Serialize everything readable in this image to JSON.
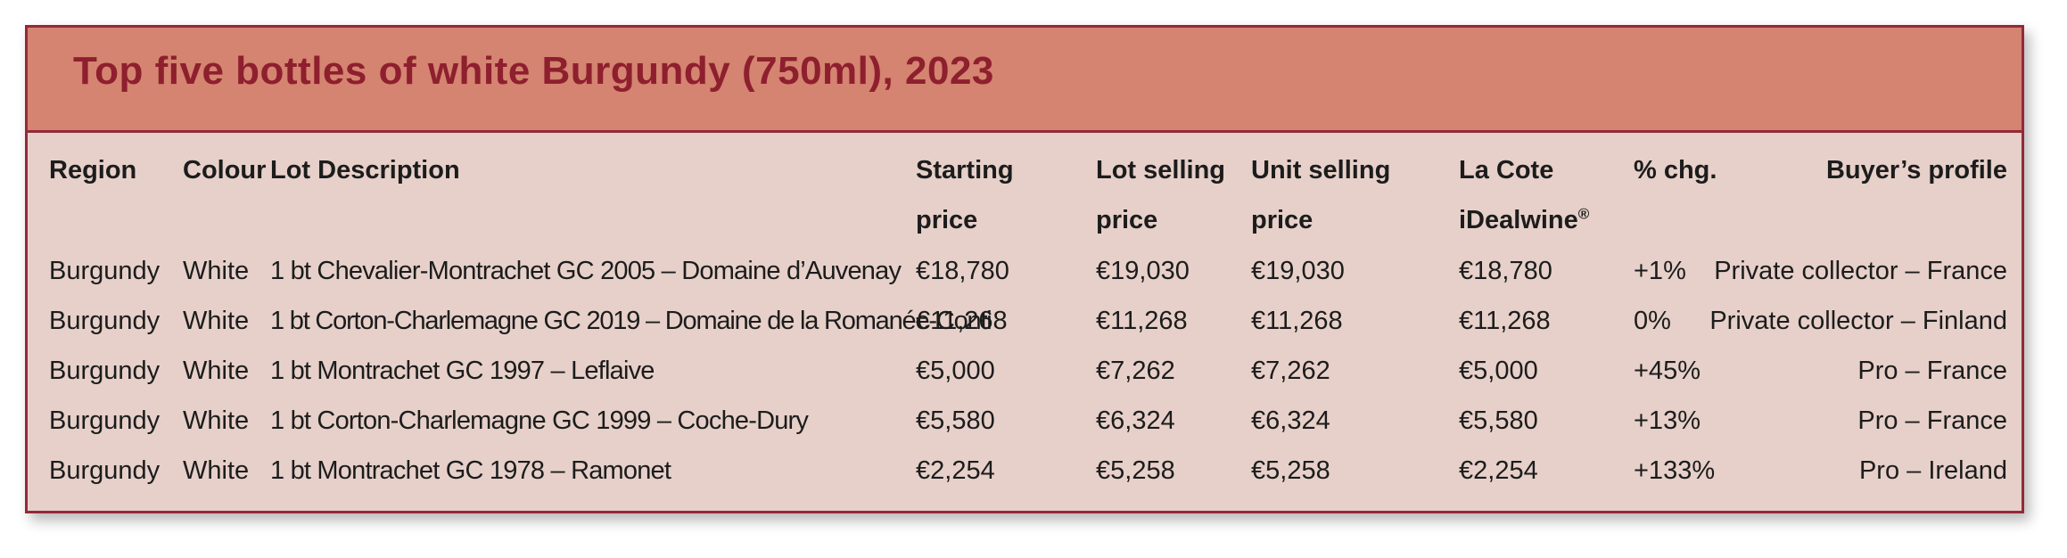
{
  "chart_data": {
    "type": "table",
    "title": "Top five bottles of white Burgundy (750ml), 2023",
    "columns": [
      "Region",
      "Colour",
      "Lot Description",
      "Starting price",
      "Lot selling price",
      "Unit selling price",
      "La Cote iDealwine®",
      "% chg.",
      "Buyer’s profile"
    ],
    "rows": [
      [
        "Burgundy",
        "White",
        "1 bt Chevalier-Montrachet GC 2005 – Domaine d’Auvenay",
        "€18,780",
        "€19,030",
        "€19,030",
        "€18,780",
        "+1%",
        "Private collector – France"
      ],
      [
        "Burgundy",
        "White",
        "1 bt Corton-Charlemagne GC 2019 – Domaine de la Romanée-Conti",
        "€11,268",
        "€11,268",
        "€11,268",
        "€11,268",
        "0%",
        "Private collector – Finland"
      ],
      [
        "Burgundy",
        "White",
        "1 bt Montrachet GC 1997 – Leflaive",
        "€5,000",
        "€7,262",
        "€7,262",
        "€5,000",
        "+45%",
        "Pro – France"
      ],
      [
        "Burgundy",
        "White",
        "1 bt Corton-Charlemagne GC 1999 – Coche-Dury",
        "€5,580",
        "€6,324",
        "€6,324",
        "€5,580",
        "+13%",
        "Pro – France"
      ],
      [
        "Burgundy",
        "White",
        "1 bt Montrachet GC 1978 – Ramonet",
        "€2,254",
        "€5,258",
        "€5,258",
        "€2,254",
        "+133%",
        "Pro – Ireland"
      ]
    ]
  },
  "headers": {
    "region": "Region",
    "colour": "Colour",
    "lot": "Lot Description",
    "start_1": "Starting",
    "start_2": "price",
    "lsp_1": "Lot selling",
    "lsp_2": "price",
    "usp_1": "Unit selling",
    "usp_2": "price",
    "cote_1": "La Cote",
    "cote_2": "iDealwine",
    "cote_sup": "®",
    "chg": "% chg.",
    "buyer": "Buyer’s profile"
  },
  "colors": {
    "panel_background": "#e6d0c9",
    "title_background": "#d48470",
    "border": "#94293a",
    "title_text": "#8e1f2e",
    "body_text": "#1c1c1c"
  }
}
